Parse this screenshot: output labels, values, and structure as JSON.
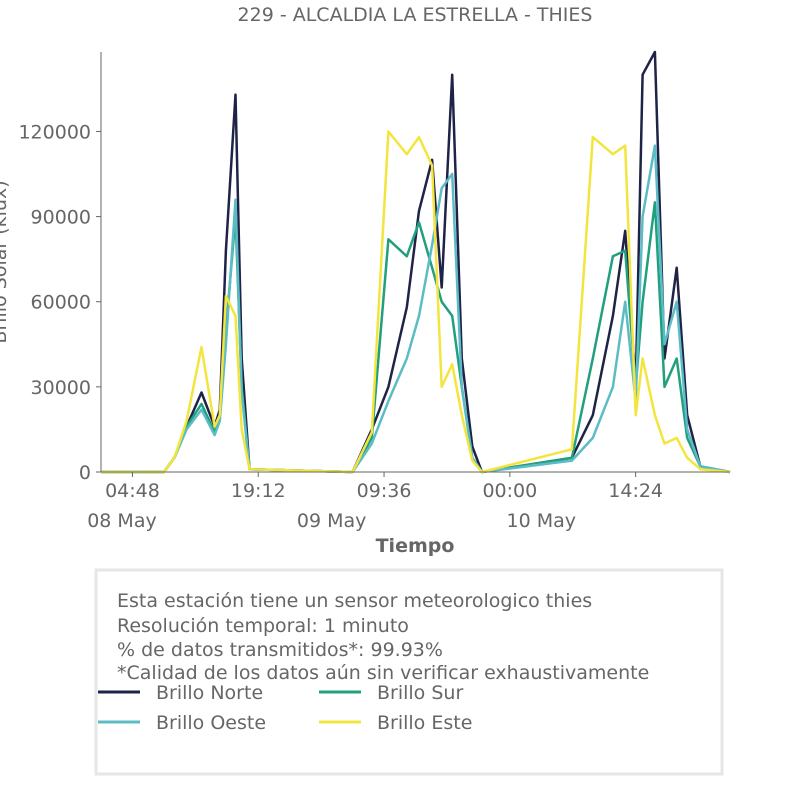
{
  "chart_data": {
    "type": "line",
    "title": "229 - ALCALDIA LA ESTRELLA - THIES",
    "xlabel": "Tiempo",
    "ylabel": "Brillo Solar (klux)",
    "ylim": [
      0,
      148000
    ],
    "yticks": [
      0,
      30000,
      60000,
      90000,
      120000
    ],
    "x_unit": "hours since 2024-05-08 01:12",
    "xlim": [
      0,
      72
    ],
    "xticks": [
      {
        "x": 3.6,
        "label": "04:48"
      },
      {
        "x": 18.0,
        "label": "19:12"
      },
      {
        "x": 32.4,
        "label": "09:36"
      },
      {
        "x": 46.8,
        "label": "00:00"
      },
      {
        "x": 61.2,
        "label": "14:24"
      }
    ],
    "date_labels": [
      {
        "x": 2.4,
        "label": "08 May"
      },
      {
        "x": 26.4,
        "label": "09 May"
      },
      {
        "x": 50.4,
        "label": "10 May"
      }
    ],
    "grid": false,
    "legend_position": "bottom",
    "series": [
      {
        "name": "Brillo Norte",
        "color": "#1f2347",
        "x": [
          0,
          7.2,
          8.4,
          9.8,
          11.5,
          13.0,
          13.6,
          14.3,
          15.4,
          16.1,
          17.0,
          28.8,
          31.0,
          32.9,
          35.0,
          36.4,
          37.9,
          39.0,
          40.2,
          41.3,
          42.5,
          43.6,
          53.9,
          56.3,
          58.6,
          60.0,
          61.2,
          62.0,
          63.4,
          64.5,
          65.9,
          67.1,
          68.6,
          72
        ],
        "y": [
          0,
          0,
          5000,
          16000,
          28000,
          16000,
          22000,
          78000,
          133000,
          40000,
          1000,
          0,
          15000,
          30000,
          58000,
          92000,
          110000,
          65000,
          140000,
          40000,
          9000,
          0,
          5000,
          20000,
          55000,
          85000,
          30000,
          140000,
          155000,
          40000,
          72000,
          20000,
          2000,
          0
        ]
      },
      {
        "name": "Brillo Sur",
        "color": "#21a07d",
        "x": [
          0,
          7.2,
          8.4,
          9.8,
          11.5,
          13.0,
          13.6,
          14.3,
          15.4,
          16.1,
          17.0,
          28.8,
          31.0,
          32.9,
          35.0,
          36.4,
          37.9,
          39.0,
          40.2,
          41.3,
          42.5,
          43.6,
          53.9,
          56.3,
          58.6,
          60.0,
          61.2,
          62.0,
          63.4,
          64.5,
          65.9,
          67.1,
          68.6,
          72
        ],
        "y": [
          0,
          0,
          5000,
          16000,
          24000,
          14000,
          20000,
          50000,
          90000,
          30000,
          1000,
          0,
          12000,
          82000,
          76000,
          88000,
          72000,
          60000,
          55000,
          30000,
          5000,
          0,
          5000,
          40000,
          76000,
          78000,
          30000,
          60000,
          95000,
          30000,
          40000,
          12000,
          2000,
          0
        ]
      },
      {
        "name": "Brillo Oeste",
        "color": "#5cbcc5",
        "x": [
          0,
          7.2,
          8.4,
          9.8,
          11.5,
          13.0,
          13.6,
          14.3,
          15.4,
          16.1,
          17.0,
          28.8,
          31.0,
          32.9,
          35.0,
          36.4,
          37.9,
          39.0,
          40.2,
          41.3,
          42.5,
          43.6,
          53.9,
          56.3,
          58.6,
          60.0,
          61.2,
          62.0,
          63.4,
          64.5,
          65.9,
          67.1,
          68.6,
          72
        ],
        "y": [
          0,
          0,
          5000,
          15000,
          22000,
          13000,
          18000,
          45000,
          96000,
          28000,
          1000,
          0,
          10000,
          25000,
          40000,
          55000,
          80000,
          100000,
          105000,
          30000,
          5000,
          0,
          4000,
          12000,
          30000,
          60000,
          25000,
          90000,
          115000,
          45000,
          60000,
          15000,
          2000,
          0
        ]
      },
      {
        "name": "Brillo Este",
        "color": "#f3e53e",
        "x": [
          0,
          7.2,
          8.4,
          9.8,
          11.5,
          13.0,
          13.6,
          14.3,
          15.4,
          16.1,
          17.0,
          28.8,
          31.0,
          32.9,
          35.0,
          36.4,
          37.9,
          39.0,
          40.2,
          41.3,
          42.5,
          43.6,
          53.9,
          56.3,
          58.6,
          60.0,
          61.2,
          62.0,
          63.4,
          64.5,
          65.9,
          67.1,
          68.6,
          72
        ],
        "y": [
          0,
          0,
          5000,
          18000,
          44000,
          16000,
          20000,
          62000,
          55000,
          15000,
          1000,
          0,
          14000,
          120000,
          112000,
          118000,
          108000,
          30000,
          38000,
          20000,
          4000,
          0,
          8000,
          118000,
          112000,
          115000,
          20000,
          40000,
          20000,
          10000,
          12000,
          5000,
          1000,
          0
        ]
      }
    ]
  },
  "info_box": {
    "line1": "Esta estación tiene un sensor meteorologico thies",
    "line2": "Resolución temporal: 1 minuto",
    "line3": "% de datos transmitidos*: 99.93%",
    "line4": "*Calidad de los datos aún sin verificar exhaustivamente"
  }
}
